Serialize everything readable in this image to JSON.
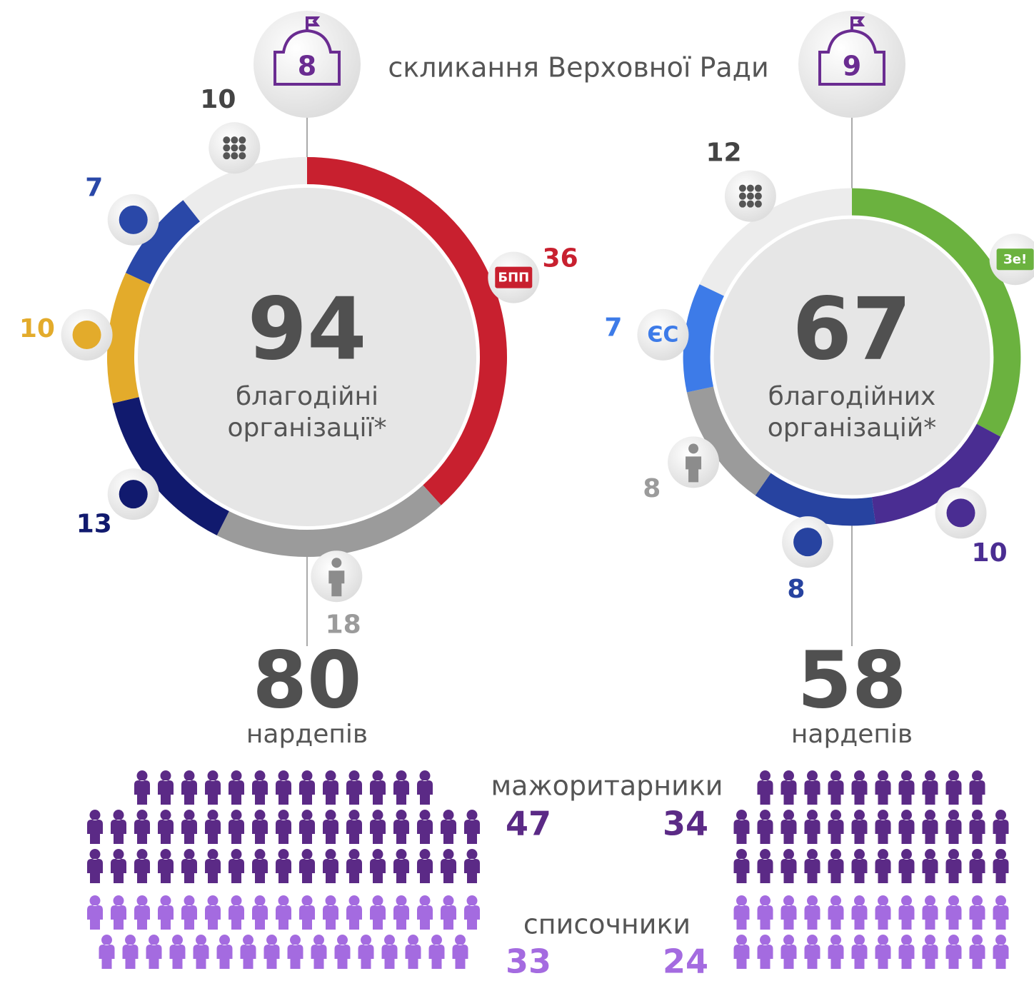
{
  "header": {
    "title": "скликання Верховної Ради"
  },
  "pictogram_labels": [
    "мажоритарники",
    "списочники"
  ],
  "group_colors": [
    "#5b2a86",
    "#a46be0"
  ],
  "chart_data": [
    {
      "type": "donut",
      "badge": 8,
      "total": 94,
      "center_lines": [
        "благодійні",
        "організації*"
      ],
      "categories": [
        "БПП",
        null,
        null,
        null,
        null,
        null
      ],
      "values": [
        36,
        18,
        13,
        10,
        7,
        10
      ],
      "colors": [
        "#c8202f",
        "#9b9b9b",
        "#111a6e",
        "#e3ab2b",
        "#2a48a8",
        "#ececec"
      ],
      "mps": 80,
      "mps_label": "нардепів",
      "groups": [
        47,
        33
      ]
    },
    {
      "type": "donut",
      "badge": 9,
      "total": 67,
      "center_lines": [
        "благодійних",
        "організацій*"
      ],
      "categories": [
        "Зе!",
        null,
        null,
        null,
        "ЄС",
        null
      ],
      "values": [
        22,
        10,
        8,
        8,
        7,
        12
      ],
      "colors": [
        "#6bb23f",
        "#4a2d92",
        "#2743a0",
        "#9b9b9b",
        "#3d7be8",
        "#ececec"
      ],
      "mps": 58,
      "mps_label": "нардепів",
      "groups": [
        34,
        24
      ]
    }
  ]
}
